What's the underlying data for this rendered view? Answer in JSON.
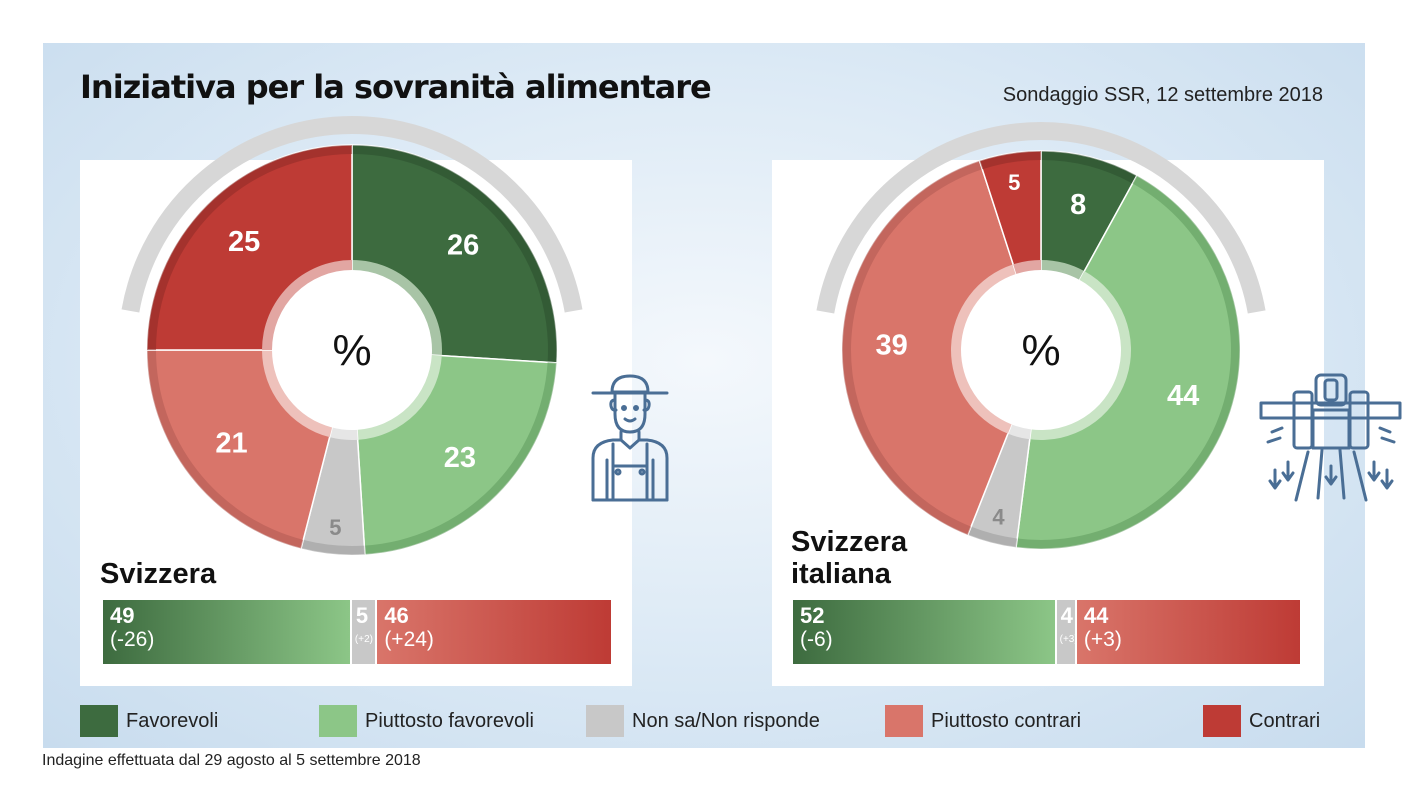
{
  "title": "Iniziativa per la sovranità alimentare",
  "source": "Sondaggio SSR, 12 settembre 2018",
  "footnote": "Indagine effettuata dal 29 agosto al 5 settembre 2018",
  "colors": {
    "favorevoli": "#3d6b3f",
    "piuttosto_favorevoli": "#8cc687",
    "non_sa": "#c8c8c8",
    "piuttosto_contrari": "#d9756a",
    "contrari": "#be3b35",
    "icon": "#4a6e95"
  },
  "legend": [
    {
      "label": "Favorevoli",
      "color": "#3d6b3f"
    },
    {
      "label": "Piuttosto favorevoli",
      "color": "#8cc687"
    },
    {
      "label": "Non sa/Non risponde",
      "color": "#c8c8c8"
    },
    {
      "label": "Piuttosto contrari",
      "color": "#d9756a"
    },
    {
      "label": "Contrari",
      "color": "#be3b35"
    }
  ],
  "panels": [
    {
      "region": "Svizzera",
      "center_label": "%",
      "icon": "farmer-icon",
      "summary": {
        "favor": {
          "value": "49",
          "change": "(-26)"
        },
        "neutral": {
          "value": "5",
          "change": "(+2)"
        },
        "against": {
          "value": "46",
          "change": "(+24)"
        }
      }
    },
    {
      "region": "Svizzera italiana",
      "center_label": "%",
      "icon": "tractor-sprayer-icon",
      "summary": {
        "favor": {
          "value": "52",
          "change": "(-6)"
        },
        "neutral": {
          "value": "4",
          "change": "(+3)"
        },
        "against": {
          "value": "44",
          "change": "(+3)"
        }
      }
    }
  ],
  "chart_data": [
    {
      "type": "pie",
      "unit": "%",
      "categories": [
        "Favorevoli",
        "Piuttosto favorevoli",
        "Non sa/Non risponde",
        "Piuttosto contrari",
        "Contrari"
      ],
      "values": [
        26,
        23,
        5,
        21,
        25
      ]
    },
    {
      "type": "pie",
      "unit": "%",
      "categories": [
        "Favorevoli",
        "Piuttosto favorevoli",
        "Non sa/Non risponde",
        "Piuttosto contrari",
        "Contrari"
      ],
      "values": [
        8,
        44,
        4,
        39,
        5
      ]
    },
    {
      "type": "bar",
      "stacked": true,
      "categories": [
        "Svizzera",
        "Svizzera italiana"
      ],
      "series": [
        {
          "name": "Favorevoli",
          "values": [
            49,
            52
          ],
          "changes": [
            "-26",
            "-6"
          ]
        },
        {
          "name": "Non sa/Non risponde",
          "values": [
            5,
            4
          ],
          "changes": [
            "+2",
            "+3"
          ]
        },
        {
          "name": "Contrari",
          "values": [
            46,
            44
          ],
          "changes": [
            "+24",
            "+3"
          ]
        }
      ]
    }
  ]
}
